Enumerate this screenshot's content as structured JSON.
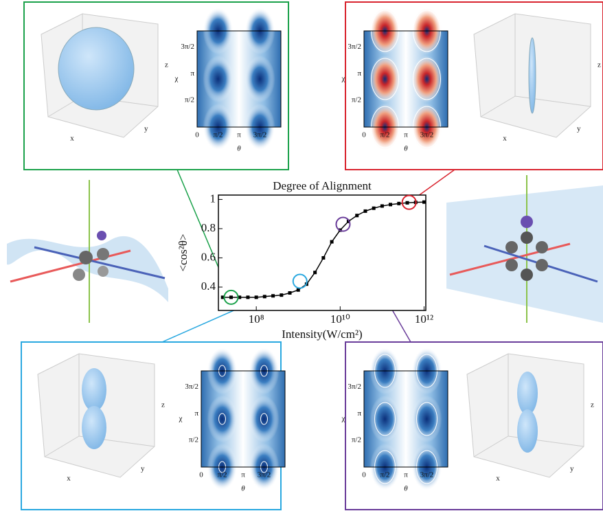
{
  "chart_data": {
    "type": "line",
    "title": "Degree of Alignment",
    "x_label": "Intensity(W/cm²)",
    "y_label": "<cos²θ>",
    "log_x": true,
    "color": "#000000",
    "x": [
      15800000.0,
      25100000.0,
      39800000.0,
      63100000.0,
      100000000.0,
      158000000.0,
      251000000.0,
      398000000.0,
      631000000.0,
      1000000000.0,
      1580000000.0,
      2510000000.0,
      3980000000.0,
      6310000000.0,
      10000000000.0,
      15800000000.0,
      25100000000.0,
      39800000000.0,
      63100000000.0,
      100000000000.0,
      158000000000.0,
      251000000000.0,
      398000000000.0,
      631000000000.0,
      1000000000000.0
    ],
    "values": [
      0.33,
      0.33,
      0.33,
      0.33,
      0.33,
      0.335,
      0.34,
      0.345,
      0.36,
      0.38,
      0.42,
      0.5,
      0.6,
      0.71,
      0.79,
      0.85,
      0.89,
      0.92,
      0.94,
      0.955,
      0.965,
      0.972,
      0.977,
      0.98,
      0.982
    ],
    "xlim": [
      12500000.0,
      1100000000000.0
    ],
    "ylim": [
      0.24,
      1.03
    ],
    "xticks": [
      {
        "value": 100000000.0,
        "label": "10⁸"
      },
      {
        "value": 10000000000.0,
        "label": "10¹⁰"
      },
      {
        "value": 1000000000000.0,
        "label": "10¹²"
      }
    ],
    "yticks": [
      0.4,
      0.6,
      0.8,
      1
    ],
    "highlights": [
      {
        "x": 25100000.0,
        "y": 0.33,
        "color": "#1aa14a"
      },
      {
        "x": 1100000000.0,
        "y": 0.44,
        "color": "#29a8e0"
      },
      {
        "x": 11700000000.0,
        "y": 0.83,
        "color": "#6a3d9a"
      },
      {
        "x": 440000000000.0,
        "y": 0.98,
        "color": "#d9232e"
      }
    ]
  },
  "panels": [
    {
      "color": "#1aa14a",
      "chi": "χ",
      "theta": "θ",
      "ticks": [
        "0",
        "π/2",
        "π",
        "3π/2"
      ],
      "axes": [
        "x",
        "y",
        "z"
      ]
    },
    {
      "color": "#d9232e",
      "chi": "χ",
      "theta": "θ",
      "ticks": [
        "0",
        "π/2",
        "π",
        "3π/2"
      ],
      "axes": [
        "x",
        "y",
        "z"
      ]
    },
    {
      "color": "#29a8e0",
      "chi": "χ",
      "theta": "θ",
      "ticks": [
        "0",
        "π/2",
        "π",
        "3π/2"
      ],
      "axes": [
        "x",
        "y",
        "z"
      ]
    },
    {
      "color": "#6a3d9a",
      "chi": "χ",
      "theta": "θ",
      "ticks": [
        "0",
        "π/2",
        "π",
        "3π/2"
      ],
      "axes": [
        "x",
        "y",
        "z"
      ]
    }
  ]
}
